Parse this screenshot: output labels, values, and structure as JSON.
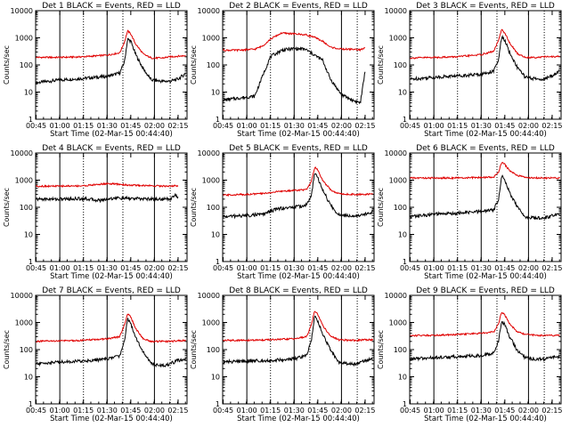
{
  "figure": {
    "panel_title_template": "Det {n}  BLACK = Events, RED = LLD",
    "xlabel": "Start Time (02-Mar-15 00:44:40)",
    "ylabel": "Counts/sec",
    "colors": {
      "events": "#000000",
      "lld": "#e00000",
      "axes": "#000000",
      "background": "#ffffff"
    }
  },
  "chart_data": [
    {
      "type": "line",
      "title": "Det 1  BLACK = Events, RED = LLD",
      "xlabel": "Start Time (02-Mar-15 00:44:40)",
      "ylabel": "Counts/sec",
      "xscale": "time (minutes from 00:44:40)",
      "yscale": "log",
      "xlim": [
        0,
        96
      ],
      "ylim": [
        1,
        10000
      ],
      "xticks": [
        "00:45",
        "01:00",
        "01:15",
        "01:30",
        "01:45",
        "02:00",
        "02:15"
      ],
      "yticks": [
        "1",
        "10",
        "100",
        "1000",
        "10000"
      ],
      "vlines_solid": [
        "01:00",
        "01:30",
        "02:00"
      ],
      "vlines_dotted": [
        "01:15",
        "01:40",
        "02:10"
      ],
      "series": [
        {
          "name": "Events",
          "color": "#000000",
          "x": [
            "00:45",
            "01:00",
            "01:15",
            "01:30",
            "01:38",
            "01:41",
            "01:43",
            "01:45",
            "01:48",
            "01:53",
            "01:58",
            "02:05",
            "02:10",
            "02:15",
            "02:20"
          ],
          "y": [
            22,
            28,
            32,
            38,
            50,
            130,
            900,
            750,
            250,
            70,
            28,
            25,
            25,
            30,
            50
          ]
        },
        {
          "name": "LLD",
          "color": "#e00000",
          "x": [
            "00:45",
            "01:00",
            "01:15",
            "01:30",
            "01:38",
            "01:41",
            "01:43",
            "01:45",
            "01:48",
            "01:53",
            "01:58",
            "02:05",
            "02:10",
            "02:15",
            "02:20"
          ],
          "y": [
            190,
            190,
            200,
            230,
            280,
            700,
            1800,
            1400,
            600,
            250,
            180,
            180,
            200,
            210,
            220
          ]
        }
      ]
    },
    {
      "type": "line",
      "title": "Det 2  BLACK = Events, RED = LLD",
      "xlabel": "Start Time (02-Mar-15 00:44:40)",
      "ylabel": "Counts/sec",
      "xscale": "time (minutes from 00:44:40)",
      "yscale": "log",
      "xlim": [
        0,
        96
      ],
      "ylim": [
        1,
        10000
      ],
      "xticks": [
        "00:45",
        "01:00",
        "01:15",
        "01:30",
        "01:45",
        "02:00",
        "02:15"
      ],
      "yticks": [
        "1",
        "10",
        "100",
        "1000",
        "10000"
      ],
      "vlines_solid": [
        "01:00",
        "01:30",
        "02:00"
      ],
      "vlines_dotted": [
        "01:15",
        "01:40",
        "02:10"
      ],
      "series": [
        {
          "name": "Events",
          "color": "#000000",
          "x": [
            "00:45",
            "00:55",
            "01:05",
            "01:10",
            "01:15",
            "01:22",
            "01:30",
            "01:37",
            "01:42",
            "01:48",
            "01:53",
            "02:00",
            "02:07",
            "02:12",
            "02:15"
          ],
          "y": [
            5,
            6,
            7,
            40,
            200,
            350,
            400,
            380,
            250,
            150,
            30,
            8,
            5,
            4,
            60
          ]
        },
        {
          "name": "LLD",
          "color": "#e00000",
          "x": [
            "00:45",
            "00:55",
            "01:05",
            "01:10",
            "01:15",
            "01:22",
            "01:30",
            "01:37",
            "01:42",
            "01:48",
            "01:53",
            "02:00",
            "02:07",
            "02:12",
            "02:15"
          ],
          "y": [
            350,
            350,
            380,
            500,
            900,
            1500,
            1400,
            1300,
            1100,
            750,
            450,
            380,
            380,
            360,
            420
          ]
        }
      ]
    },
    {
      "type": "line",
      "title": "Det 3  BLACK = Events, RED = LLD",
      "xlabel": "Start Time (02-Mar-15 00:44:40)",
      "ylabel": "Counts/sec",
      "xscale": "time (minutes from 00:44:40)",
      "yscale": "log",
      "xlim": [
        0,
        96
      ],
      "ylim": [
        1,
        10000
      ],
      "xticks": [
        "00:45",
        "01:00",
        "01:15",
        "01:30",
        "01:45",
        "02:00",
        "02:15"
      ],
      "yticks": [
        "1",
        "10",
        "100",
        "1000",
        "10000"
      ],
      "vlines_solid": [
        "01:00",
        "01:30",
        "02:00"
      ],
      "vlines_dotted": [
        "01:15",
        "01:40",
        "02:10"
      ],
      "series": [
        {
          "name": "Events",
          "color": "#000000",
          "x": [
            "00:45",
            "01:00",
            "01:15",
            "01:30",
            "01:38",
            "01:41",
            "01:43",
            "01:45",
            "01:48",
            "01:53",
            "01:58",
            "02:05",
            "02:10",
            "02:15",
            "02:20"
          ],
          "y": [
            30,
            35,
            40,
            45,
            60,
            150,
            1100,
            800,
            280,
            80,
            35,
            30,
            30,
            40,
            60
          ]
        },
        {
          "name": "LLD",
          "color": "#e00000",
          "x": [
            "00:45",
            "01:00",
            "01:15",
            "01:30",
            "01:38",
            "01:41",
            "01:43",
            "01:45",
            "01:48",
            "01:53",
            "01:58",
            "02:05",
            "02:10",
            "02:15",
            "02:20"
          ],
          "y": [
            180,
            190,
            200,
            240,
            320,
            800,
            2000,
            1500,
            650,
            260,
            190,
            190,
            200,
            200,
            210
          ]
        }
      ]
    },
    {
      "type": "line",
      "title": "Det 4  BLACK = Events, RED = LLD",
      "xlabel": "Start Time (02-Mar-15 00:44:40)",
      "ylabel": "Counts/sec",
      "xscale": "time (minutes from 00:44:40)",
      "yscale": "log",
      "xlim": [
        0,
        96
      ],
      "ylim": [
        1,
        10000
      ],
      "xticks": [
        "00:45",
        "01:00",
        "01:15",
        "01:30",
        "01:45",
        "02:00",
        "02:15"
      ],
      "yticks": [
        "1",
        "10",
        "100",
        "1000",
        "10000"
      ],
      "vlines_solid": [
        "01:00",
        "01:30",
        "02:00"
      ],
      "vlines_dotted": [
        "01:15",
        "01:40",
        "02:10"
      ],
      "series": [
        {
          "name": "Events",
          "color": "#000000",
          "x": [
            "00:45",
            "01:00",
            "01:15",
            "01:25",
            "01:30",
            "01:35",
            "01:45",
            "02:00",
            "02:10",
            "02:13",
            "02:15"
          ],
          "y": [
            200,
            200,
            210,
            180,
            200,
            220,
            210,
            200,
            200,
            300,
            220
          ]
        },
        {
          "name": "LLD",
          "color": "#e00000",
          "x": [
            "00:45",
            "01:00",
            "01:15",
            "01:25",
            "01:30",
            "01:35",
            "01:45",
            "02:00",
            "02:10",
            "02:13",
            "02:15"
          ],
          "y": [
            600,
            600,
            620,
            700,
            750,
            720,
            650,
            620,
            600,
            620,
            600
          ]
        }
      ]
    },
    {
      "type": "line",
      "title": "Det 5  BLACK = Events, RED = LLD",
      "xlabel": "Start Time (02-Mar-15 00:44:40)",
      "ylabel": "Counts/sec",
      "xscale": "time (minutes from 00:44:40)",
      "yscale": "log",
      "xlim": [
        0,
        96
      ],
      "ylim": [
        1,
        10000
      ],
      "xticks": [
        "00:45",
        "01:00",
        "01:15",
        "01:30",
        "01:45",
        "02:00",
        "02:15"
      ],
      "yticks": [
        "1",
        "10",
        "100",
        "1000",
        "10000"
      ],
      "vlines_solid": [
        "01:00",
        "01:30",
        "02:00"
      ],
      "vlines_dotted": [
        "01:15",
        "01:40",
        "02:10"
      ],
      "series": [
        {
          "name": "Events",
          "color": "#000000",
          "x": [
            "00:45",
            "01:00",
            "01:10",
            "01:20",
            "01:30",
            "01:38",
            "01:41",
            "01:43",
            "01:45",
            "01:48",
            "01:53",
            "01:58",
            "02:05",
            "02:10",
            "02:15",
            "02:20"
          ],
          "y": [
            45,
            50,
            55,
            90,
            100,
            120,
            300,
            1800,
            1200,
            450,
            120,
            55,
            50,
            50,
            55,
            70
          ]
        },
        {
          "name": "LLD",
          "color": "#e00000",
          "x": [
            "00:45",
            "01:00",
            "01:10",
            "01:20",
            "01:30",
            "01:38",
            "01:41",
            "01:43",
            "01:45",
            "01:48",
            "01:53",
            "01:58",
            "02:05",
            "02:10",
            "02:15",
            "02:20"
          ],
          "y": [
            280,
            300,
            320,
            380,
            420,
            450,
            900,
            3000,
            2300,
            1000,
            450,
            320,
            300,
            300,
            300,
            310
          ]
        }
      ]
    },
    {
      "type": "line",
      "title": "Det 6  BLACK = Events, RED = LLD",
      "xlabel": "Start Time (02-Mar-15 00:44:40)",
      "ylabel": "Counts/sec",
      "xscale": "time (minutes from 00:44:40)",
      "yscale": "log",
      "xlim": [
        0,
        96
      ],
      "ylim": [
        1,
        10000
      ],
      "xticks": [
        "00:45",
        "01:00",
        "01:15",
        "01:30",
        "01:45",
        "02:00",
        "02:15"
      ],
      "yticks": [
        "1",
        "10",
        "100",
        "1000",
        "10000"
      ],
      "vlines_solid": [
        "01:00",
        "01:30",
        "02:00"
      ],
      "vlines_dotted": [
        "01:15",
        "01:40",
        "02:10"
      ],
      "series": [
        {
          "name": "Events",
          "color": "#000000",
          "x": [
            "00:45",
            "01:00",
            "01:15",
            "01:30",
            "01:38",
            "01:41",
            "01:43",
            "01:45",
            "01:48",
            "01:53",
            "01:58",
            "02:05",
            "02:10",
            "02:15",
            "02:20"
          ],
          "y": [
            45,
            55,
            60,
            70,
            80,
            200,
            1500,
            1000,
            350,
            100,
            45,
            40,
            40,
            50,
            55
          ]
        },
        {
          "name": "LLD",
          "color": "#e00000",
          "x": [
            "00:45",
            "01:00",
            "01:15",
            "01:30",
            "01:38",
            "01:41",
            "01:43",
            "01:45",
            "01:48",
            "01:53",
            "01:58",
            "02:05",
            "02:10",
            "02:15",
            "02:20"
          ],
          "y": [
            1200,
            1200,
            1200,
            1250,
            1300,
            2000,
            4500,
            3800,
            2200,
            1500,
            1250,
            1200,
            1200,
            1200,
            1200
          ]
        }
      ]
    },
    {
      "type": "line",
      "title": "Det 7  BLACK = Events, RED = LLD",
      "xlabel": "Start Time (02-Mar-15 00:44:40)",
      "ylabel": "Counts/sec",
      "xscale": "time (minutes from 00:44:40)",
      "yscale": "log",
      "xlim": [
        0,
        96
      ],
      "ylim": [
        1,
        10000
      ],
      "xticks": [
        "00:45",
        "01:00",
        "01:15",
        "01:30",
        "01:45",
        "02:00",
        "02:15"
      ],
      "yticks": [
        "1",
        "10",
        "100",
        "1000",
        "10000"
      ],
      "vlines_solid": [
        "01:00",
        "01:30",
        "02:00"
      ],
      "vlines_dotted": [
        "01:15",
        "01:40",
        "02:10"
      ],
      "series": [
        {
          "name": "Events",
          "color": "#000000",
          "x": [
            "00:45",
            "01:00",
            "01:15",
            "01:30",
            "01:38",
            "01:41",
            "01:43",
            "01:45",
            "01:48",
            "01:53",
            "01:58",
            "02:05",
            "02:10",
            "02:15",
            "02:20"
          ],
          "y": [
            30,
            35,
            38,
            45,
            60,
            200,
            1500,
            900,
            300,
            80,
            30,
            25,
            30,
            40,
            45
          ]
        },
        {
          "name": "LLD",
          "color": "#e00000",
          "x": [
            "00:45",
            "01:00",
            "01:15",
            "01:30",
            "01:38",
            "01:41",
            "01:43",
            "01:45",
            "01:48",
            "01:53",
            "01:58",
            "02:05",
            "02:10",
            "02:15",
            "02:20"
          ],
          "y": [
            200,
            210,
            220,
            250,
            300,
            800,
            2200,
            1600,
            600,
            250,
            200,
            200,
            200,
            210,
            220
          ]
        }
      ]
    },
    {
      "type": "line",
      "title": "Det 8  BLACK = Events, RED = LLD",
      "xlabel": "Start Time (02-Mar-15 00:44:40)",
      "ylabel": "Counts/sec",
      "xscale": "time (minutes from 00:44:40)",
      "yscale": "log",
      "xlim": [
        0,
        96
      ],
      "ylim": [
        1,
        10000
      ],
      "xticks": [
        "00:45",
        "01:00",
        "01:15",
        "01:30",
        "01:45",
        "02:00",
        "02:15"
      ],
      "yticks": [
        "1",
        "10",
        "100",
        "1000",
        "10000"
      ],
      "vlines_solid": [
        "01:00",
        "01:30",
        "02:00"
      ],
      "vlines_dotted": [
        "01:15",
        "01:40",
        "02:10"
      ],
      "series": [
        {
          "name": "Events",
          "color": "#000000",
          "x": [
            "00:45",
            "01:00",
            "01:15",
            "01:30",
            "01:38",
            "01:41",
            "01:43",
            "01:45",
            "01:48",
            "01:53",
            "01:58",
            "02:05",
            "02:10",
            "02:15",
            "02:20"
          ],
          "y": [
            35,
            38,
            40,
            45,
            60,
            250,
            1700,
            1100,
            380,
            100,
            35,
            30,
            30,
            40,
            45
          ]
        },
        {
          "name": "LLD",
          "color": "#e00000",
          "x": [
            "00:45",
            "01:00",
            "01:15",
            "01:30",
            "01:38",
            "01:41",
            "01:43",
            "01:45",
            "01:48",
            "01:53",
            "01:58",
            "02:05",
            "02:10",
            "02:15",
            "02:20"
          ],
          "y": [
            220,
            220,
            230,
            250,
            300,
            900,
            2600,
            2000,
            800,
            320,
            230,
            220,
            220,
            230,
            230
          ]
        }
      ]
    },
    {
      "type": "line",
      "title": "Det 9  BLACK = Events, RED = LLD",
      "xlabel": "Start Time (02-Mar-15 00:44:40)",
      "ylabel": "Counts/sec",
      "xscale": "time (minutes from 00:44:40)",
      "yscale": "log",
      "xlim": [
        0,
        96
      ],
      "ylim": [
        1,
        10000
      ],
      "xticks": [
        "00:45",
        "01:00",
        "01:15",
        "01:30",
        "01:45",
        "02:00",
        "02:15"
      ],
      "yticks": [
        "1",
        "10",
        "100",
        "1000",
        "10000"
      ],
      "vlines_solid": [
        "01:00",
        "01:30",
        "02:00"
      ],
      "vlines_dotted": [
        "01:15",
        "01:40",
        "02:10"
      ],
      "series": [
        {
          "name": "Events",
          "color": "#000000",
          "x": [
            "00:45",
            "01:00",
            "01:15",
            "01:30",
            "01:38",
            "01:41",
            "01:43",
            "01:45",
            "01:48",
            "01:53",
            "01:58",
            "02:05",
            "02:10",
            "02:15",
            "02:20"
          ],
          "y": [
            45,
            50,
            55,
            60,
            75,
            200,
            1200,
            800,
            300,
            90,
            50,
            45,
            45,
            50,
            55
          ]
        },
        {
          "name": "LLD",
          "color": "#e00000",
          "x": [
            "00:45",
            "01:00",
            "01:15",
            "01:30",
            "01:38",
            "01:41",
            "01:43",
            "01:45",
            "01:48",
            "01:53",
            "01:58",
            "02:05",
            "02:10",
            "02:15",
            "02:20"
          ],
          "y": [
            330,
            340,
            360,
            400,
            450,
            900,
            2500,
            1900,
            900,
            450,
            360,
            340,
            330,
            330,
            340
          ]
        }
      ]
    }
  ]
}
